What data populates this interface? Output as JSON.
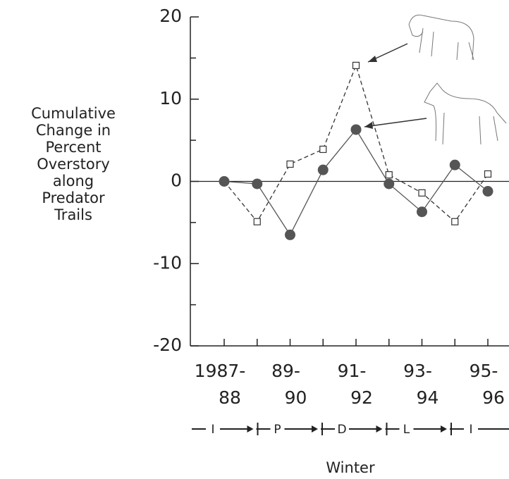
{
  "chart_data": {
    "type": "line",
    "y_label": [
      "Cumulative",
      "Change in",
      "Percent",
      "Overstory",
      "along",
      "Predator",
      "Trails"
    ],
    "x_label": "Winter",
    "categories": [
      [
        "1987-",
        "88"
      ],
      null,
      [
        "89-",
        "90"
      ],
      null,
      [
        "91-",
        "92"
      ],
      null,
      [
        "93-",
        "94"
      ],
      null,
      [
        "95-",
        "96"
      ]
    ],
    "phases": [
      "I",
      "P",
      "D",
      "L",
      "I"
    ],
    "ylim": [
      -20,
      20
    ],
    "yticks": [
      -20,
      -10,
      0,
      10,
      20
    ],
    "yminor_ticks": [
      -15,
      -5,
      5,
      15
    ],
    "series": [
      {
        "marker": "square",
        "dash": true,
        "color": "#333333",
        "values": [
          0,
          -4.9,
          2.1,
          3.9,
          14.1,
          0.8,
          -1.4,
          -4.9,
          0.9
        ]
      },
      {
        "marker": "circle",
        "dash": false,
        "color": "#555555",
        "values": [
          0,
          -0.3,
          -6.5,
          1.4,
          6.3,
          -0.3,
          -3.7,
          2.0,
          -1.2
        ]
      }
    ]
  }
}
